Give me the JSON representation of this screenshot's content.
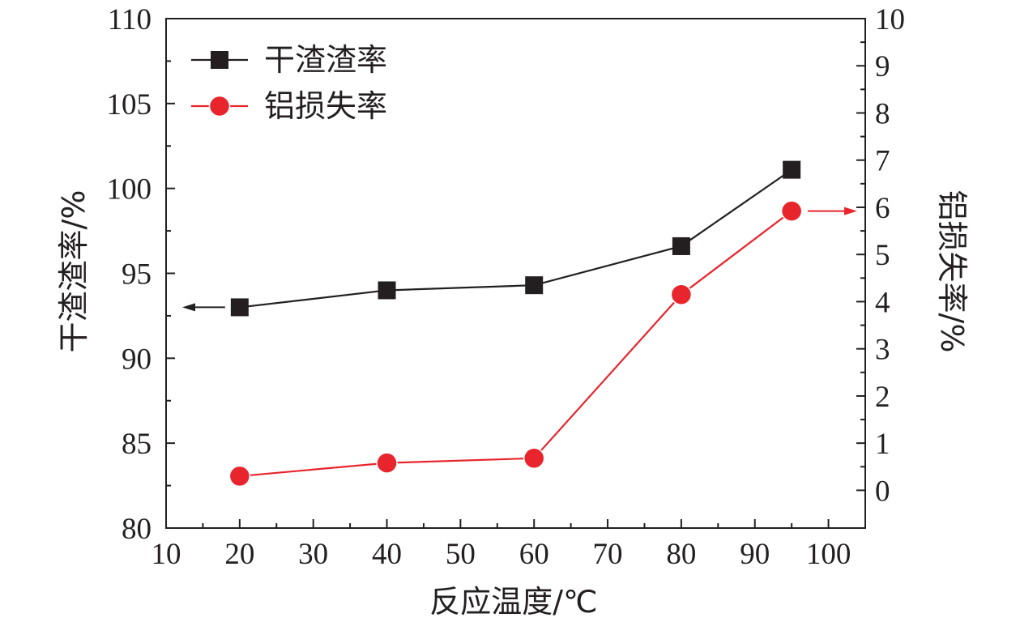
{
  "chart_data": {
    "type": "line",
    "xlabel": "反应温度/℃",
    "ylabel_left": "干渣渣率/%",
    "ylabel_right": "铝损失率/%",
    "xlim": [
      10,
      105
    ],
    "xticks": [
      10,
      20,
      30,
      40,
      50,
      60,
      70,
      80,
      90,
      100
    ],
    "ylim_left": [
      80,
      110
    ],
    "yticks_left": [
      80,
      85,
      90,
      95,
      100,
      105,
      110
    ],
    "ylim_right": [
      -0.8,
      10
    ],
    "yticks_right": [
      0,
      1,
      2,
      3,
      4,
      5,
      6,
      7,
      8,
      9,
      10
    ],
    "grid": false,
    "legend_position": "top-left",
    "series": [
      {
        "name": "干渣渣率",
        "axis": "left",
        "marker": "square",
        "color": "#231f20",
        "x": [
          20,
          40,
          60,
          80,
          95
        ],
        "y": [
          93.0,
          94.0,
          94.3,
          96.6,
          101.1
        ]
      },
      {
        "name": "铝损失率",
        "axis": "right",
        "marker": "circle",
        "color": "#e8252c",
        "x": [
          20,
          40,
          60,
          80,
          95
        ],
        "y": [
          0.3,
          0.58,
          0.68,
          4.15,
          5.92
        ]
      }
    ]
  }
}
